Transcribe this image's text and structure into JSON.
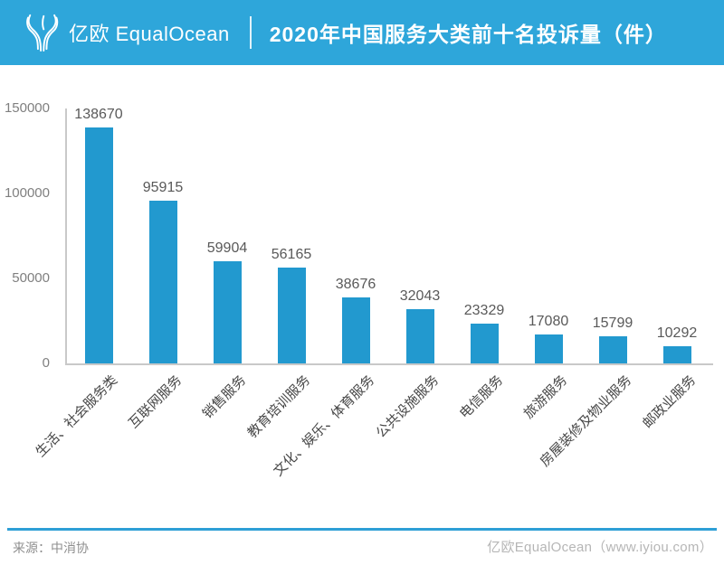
{
  "header": {
    "logo_icon": "equalocean-y-logo",
    "logo_text": "亿欧 EqualOcean",
    "title": "2020年中国服务大类前十名投诉量（件）"
  },
  "chart_data": {
    "type": "bar",
    "title": "2020年中国服务大类前十名投诉量（件）",
    "categories": [
      "生活、社会服务类",
      "互联网服务",
      "销售服务",
      "教育培训服务",
      "文化、娱乐、体育服务",
      "公共设施服务",
      "电信服务",
      "旅游服务",
      "房屋装修及物业服务",
      "邮政业服务"
    ],
    "values": [
      138670,
      95915,
      59904,
      56165,
      38676,
      32043,
      23329,
      17080,
      15799,
      10292
    ],
    "xlabel": "",
    "ylabel": "",
    "ylim": [
      0,
      150000
    ],
    "yticks": [
      0,
      50000,
      100000,
      150000
    ],
    "ytick_labels": [
      "0",
      "50000",
      "100000",
      "150000"
    ],
    "bar_color": "#2299CF",
    "grid": false,
    "legend": "none",
    "value_labels_shown": true
  },
  "footer": {
    "source": "来源：中消协",
    "brand": "亿欧EqualOcean（www.iyiou.com）"
  },
  "colors": {
    "header_bg": "#2EA6DA",
    "bar": "#2299CF",
    "axis_line": "#c9c9c9",
    "value_label": "#595959",
    "tick_label": "#7f7f7f",
    "category_label": "#474747",
    "footer_line": "#2E9FD6"
  }
}
